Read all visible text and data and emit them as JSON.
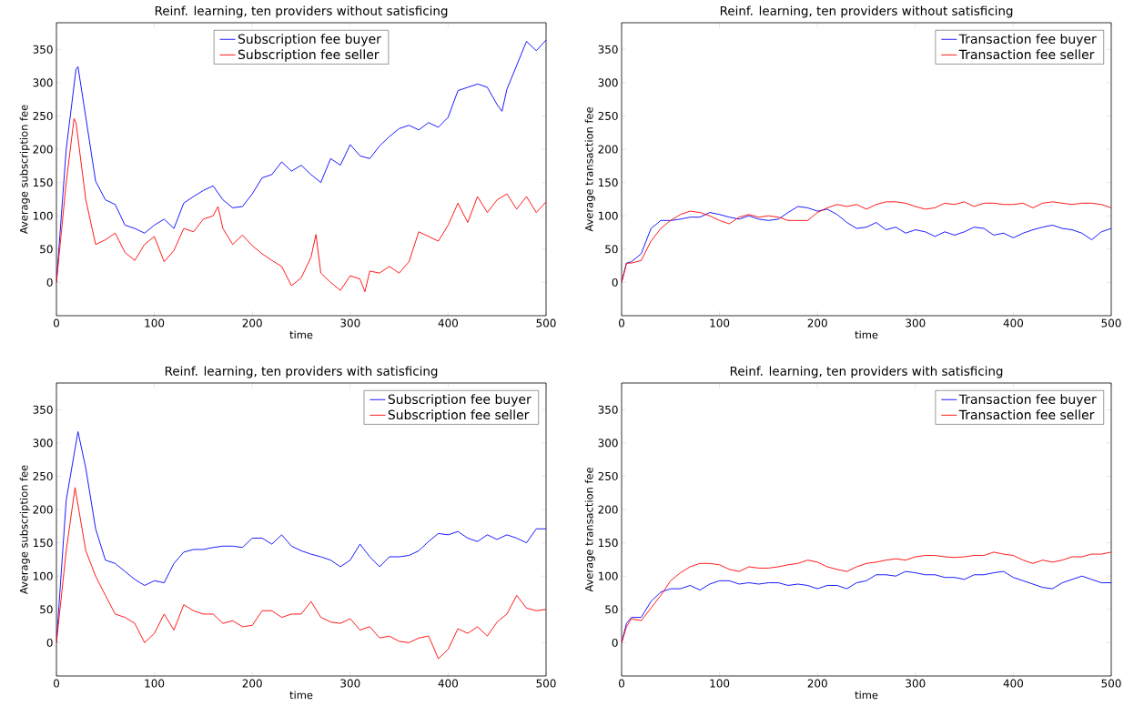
{
  "chart_data": [
    {
      "type": "line",
      "title": "Reinf. learning, ten providers without satisficing",
      "xlabel": "time",
      "ylabel": "Average subscription fee",
      "xlim": [
        0,
        500
      ],
      "ylim": [
        -50,
        390
      ],
      "xticks": [
        0,
        100,
        200,
        300,
        400,
        500
      ],
      "yticks": [
        0,
        50,
        100,
        150,
        200,
        250,
        300,
        350
      ],
      "legend": "top",
      "marker": "none",
      "line_style": "solid",
      "series": [
        {
          "name": "Subscription fee buyer",
          "color": "#0000ff",
          "x": [
            0,
            10,
            20,
            22,
            30,
            40,
            50,
            60,
            70,
            80,
            90,
            100,
            110,
            120,
            130,
            140,
            150,
            160,
            170,
            180,
            190,
            200,
            210,
            220,
            230,
            240,
            250,
            260,
            270,
            280,
            290,
            300,
            310,
            320,
            330,
            340,
            350,
            360,
            370,
            380,
            390,
            400,
            410,
            420,
            430,
            440,
            450,
            455,
            460,
            470,
            480,
            490,
            500
          ],
          "values": [
            0,
            200,
            320,
            324,
            248,
            152,
            124,
            117,
            86,
            81,
            74,
            86,
            95,
            81,
            119,
            129,
            138,
            145,
            124,
            112,
            114,
            133,
            157,
            162,
            181,
            167,
            176,
            162,
            150,
            186,
            176,
            207,
            190,
            186,
            205,
            219,
            231,
            236,
            229,
            240,
            233,
            248,
            288,
            293,
            298,
            293,
            267,
            257,
            290,
            326,
            362,
            348,
            364
          ]
        },
        {
          "name": "Subscription fee seller",
          "color": "#ff0000",
          "x": [
            0,
            10,
            18,
            20,
            30,
            40,
            50,
            60,
            70,
            80,
            90,
            100,
            110,
            120,
            130,
            140,
            150,
            160,
            165,
            170,
            180,
            190,
            200,
            210,
            220,
            230,
            240,
            250,
            260,
            265,
            270,
            280,
            290,
            300,
            310,
            315,
            320,
            330,
            340,
            350,
            360,
            370,
            380,
            390,
            400,
            410,
            420,
            430,
            440,
            450,
            460,
            470,
            480,
            490,
            500
          ],
          "values": [
            0,
            150,
            246,
            240,
            124,
            57,
            64,
            74,
            45,
            33,
            57,
            69,
            31,
            48,
            81,
            76,
            95,
            100,
            114,
            81,
            57,
            71,
            55,
            43,
            33,
            24,
            -5,
            7,
            38,
            72,
            14,
            0,
            -12,
            10,
            5,
            -14,
            17,
            14,
            24,
            14,
            31,
            76,
            69,
            62,
            86,
            119,
            90,
            129,
            105,
            124,
            133,
            110,
            129,
            105,
            121
          ]
        }
      ]
    },
    {
      "type": "line",
      "title": "Reinf. learning, ten providers without satisficing",
      "xlabel": "time",
      "ylabel": "Average transaction fee",
      "xlim": [
        0,
        500
      ],
      "ylim": [
        -50,
        390
      ],
      "xticks": [
        0,
        100,
        200,
        300,
        400,
        500
      ],
      "yticks": [
        0,
        50,
        100,
        150,
        200,
        250,
        300,
        350
      ],
      "legend": "top right",
      "marker": "none",
      "line_style": "solid",
      "series": [
        {
          "name": "Transaction fee buyer",
          "color": "#0000ff",
          "x": [
            0,
            5,
            10,
            20,
            30,
            40,
            50,
            60,
            70,
            80,
            90,
            100,
            110,
            120,
            130,
            140,
            150,
            160,
            170,
            180,
            190,
            200,
            210,
            220,
            230,
            240,
            250,
            260,
            270,
            280,
            290,
            300,
            310,
            320,
            330,
            340,
            350,
            360,
            370,
            380,
            390,
            400,
            410,
            420,
            430,
            440,
            450,
            460,
            470,
            480,
            490,
            500
          ],
          "values": [
            0,
            29,
            31,
            43,
            81,
            93,
            93,
            95,
            98,
            98,
            105,
            102,
            98,
            95,
            100,
            95,
            93,
            95,
            105,
            114,
            112,
            107,
            110,
            102,
            90,
            81,
            83,
            90,
            79,
            83,
            74,
            79,
            76,
            69,
            76,
            71,
            76,
            83,
            81,
            71,
            74,
            67,
            74,
            79,
            83,
            86,
            81,
            79,
            74,
            64,
            76,
            81
          ]
        },
        {
          "name": "Transaction fee seller",
          "color": "#ff0000",
          "x": [
            0,
            5,
            10,
            20,
            30,
            40,
            50,
            60,
            70,
            80,
            90,
            100,
            110,
            120,
            130,
            140,
            150,
            160,
            170,
            180,
            190,
            200,
            210,
            220,
            230,
            240,
            250,
            260,
            270,
            280,
            290,
            300,
            310,
            320,
            330,
            340,
            350,
            360,
            370,
            380,
            390,
            400,
            410,
            420,
            430,
            440,
            450,
            460,
            470,
            480,
            490,
            500
          ],
          "values": [
            0,
            29,
            29,
            33,
            62,
            81,
            93,
            102,
            107,
            105,
            100,
            93,
            88,
            98,
            102,
            98,
            100,
            98,
            93,
            93,
            93,
            105,
            112,
            117,
            114,
            117,
            110,
            117,
            121,
            121,
            119,
            114,
            110,
            112,
            119,
            117,
            121,
            114,
            119,
            119,
            117,
            117,
            119,
            112,
            119,
            121,
            119,
            117,
            119,
            119,
            117,
            112
          ]
        }
      ]
    },
    {
      "type": "line",
      "title": "Reinf. learning, ten providers with satisficing",
      "xlabel": "time",
      "ylabel": "Average subscription fee",
      "xlim": [
        0,
        500
      ],
      "ylim": [
        -50,
        390
      ],
      "xticks": [
        0,
        100,
        200,
        300,
        400,
        500
      ],
      "yticks": [
        0,
        50,
        100,
        150,
        200,
        250,
        300,
        350
      ],
      "legend": "top right",
      "marker": "none",
      "line_style": "solid",
      "series": [
        {
          "name": "Subscription fee buyer",
          "color": "#0000ff",
          "x": [
            0,
            10,
            22,
            30,
            40,
            50,
            60,
            70,
            80,
            90,
            100,
            110,
            120,
            130,
            140,
            150,
            160,
            170,
            180,
            190,
            200,
            210,
            220,
            230,
            240,
            250,
            260,
            270,
            280,
            290,
            300,
            310,
            320,
            330,
            340,
            350,
            360,
            370,
            380,
            390,
            400,
            410,
            420,
            430,
            440,
            450,
            460,
            470,
            480,
            490,
            500
          ],
          "values": [
            0,
            214,
            317,
            262,
            171,
            124,
            119,
            107,
            95,
            86,
            93,
            90,
            119,
            136,
            140,
            140,
            143,
            145,
            145,
            143,
            157,
            157,
            148,
            162,
            145,
            138,
            133,
            129,
            124,
            114,
            124,
            148,
            129,
            114,
            129,
            129,
            131,
            138,
            152,
            164,
            162,
            167,
            157,
            152,
            162,
            155,
            162,
            157,
            150,
            171,
            171
          ]
        },
        {
          "name": "Subscription fee seller",
          "color": "#ff0000",
          "x": [
            0,
            10,
            19,
            30,
            40,
            50,
            60,
            70,
            80,
            90,
            100,
            110,
            120,
            130,
            140,
            150,
            160,
            170,
            180,
            190,
            200,
            210,
            220,
            230,
            240,
            250,
            260,
            270,
            280,
            290,
            300,
            310,
            320,
            330,
            340,
            350,
            360,
            370,
            380,
            390,
            400,
            410,
            420,
            430,
            440,
            450,
            460,
            470,
            480,
            490,
            500
          ],
          "values": [
            0,
            138,
            233,
            138,
            100,
            71,
            43,
            38,
            29,
            0,
            14,
            43,
            19,
            57,
            48,
            43,
            43,
            29,
            33,
            24,
            26,
            48,
            48,
            38,
            43,
            43,
            62,
            38,
            31,
            29,
            36,
            19,
            24,
            7,
            10,
            2,
            0,
            7,
            10,
            -24,
            -10,
            21,
            14,
            24,
            10,
            31,
            43,
            71,
            52,
            48,
            50
          ]
        }
      ]
    },
    {
      "type": "line",
      "title": "Reinf. learning, ten providers with satisficing",
      "xlabel": "time",
      "ylabel": "Average transaction fee",
      "xlim": [
        0,
        500
      ],
      "ylim": [
        -50,
        390
      ],
      "xticks": [
        0,
        100,
        200,
        300,
        400,
        500
      ],
      "yticks": [
        0,
        50,
        100,
        150,
        200,
        250,
        300,
        350
      ],
      "legend": "top right",
      "marker": "none",
      "line_style": "solid",
      "series": [
        {
          "name": "Transaction fee buyer",
          "color": "#0000ff",
          "x": [
            0,
            5,
            10,
            20,
            30,
            40,
            50,
            60,
            70,
            80,
            90,
            100,
            110,
            120,
            130,
            140,
            150,
            160,
            170,
            180,
            190,
            200,
            210,
            220,
            230,
            240,
            250,
            260,
            270,
            280,
            290,
            300,
            310,
            320,
            330,
            340,
            350,
            360,
            370,
            380,
            390,
            400,
            410,
            420,
            430,
            440,
            450,
            460,
            470,
            480,
            490,
            500
          ],
          "values": [
            0,
            29,
            38,
            38,
            62,
            76,
            81,
            81,
            86,
            79,
            88,
            93,
            93,
            88,
            90,
            88,
            90,
            90,
            86,
            88,
            86,
            81,
            86,
            86,
            81,
            90,
            93,
            102,
            102,
            100,
            107,
            105,
            102,
            102,
            98,
            98,
            95,
            102,
            102,
            105,
            107,
            98,
            93,
            88,
            83,
            81,
            90,
            95,
            100,
            95,
            90,
            90
          ]
        },
        {
          "name": "Transaction fee seller",
          "color": "#ff0000",
          "x": [
            0,
            5,
            10,
            20,
            30,
            40,
            50,
            60,
            70,
            80,
            90,
            100,
            110,
            120,
            130,
            140,
            150,
            160,
            170,
            180,
            190,
            200,
            210,
            220,
            230,
            240,
            250,
            260,
            270,
            280,
            290,
            300,
            310,
            320,
            330,
            340,
            350,
            360,
            370,
            380,
            390,
            400,
            410,
            420,
            430,
            440,
            450,
            460,
            470,
            480,
            490,
            500
          ],
          "values": [
            0,
            24,
            36,
            33,
            52,
            71,
            93,
            105,
            114,
            119,
            119,
            117,
            110,
            107,
            114,
            112,
            112,
            114,
            117,
            119,
            124,
            121,
            114,
            110,
            107,
            114,
            119,
            121,
            124,
            126,
            124,
            129,
            131,
            131,
            129,
            128,
            129,
            131,
            131,
            136,
            133,
            131,
            124,
            119,
            124,
            121,
            124,
            129,
            129,
            133,
            133,
            136
          ]
        }
      ]
    }
  ]
}
